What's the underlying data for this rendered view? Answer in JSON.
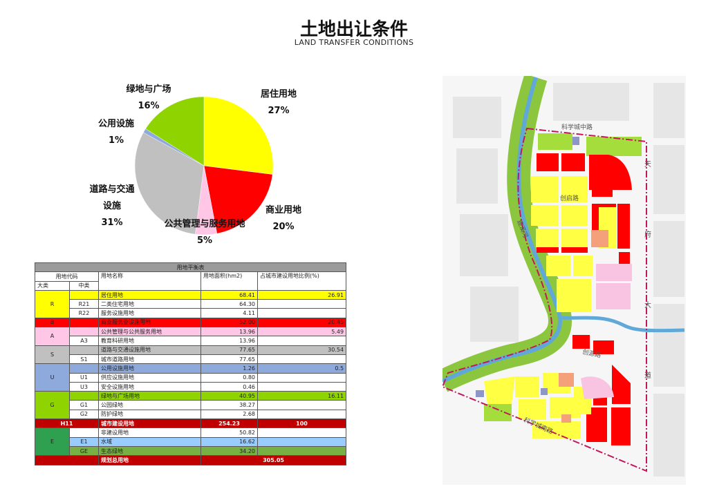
{
  "header": {
    "title": "土地出让条件",
    "subtitle": "LAND TRANSFER CONDITIONS"
  },
  "chart_data": {
    "type": "pie",
    "categories": [
      "居住用地",
      "商业用地",
      "公共管理与服务用地",
      "道路与交通设施",
      "公用设施",
      "绿地与广场"
    ],
    "values": [
      27,
      20,
      5,
      31,
      1,
      16
    ],
    "value_labels": [
      "27%",
      "20%",
      "5%",
      "31%",
      "1%",
      "16%"
    ],
    "colors": [
      "#ffff00",
      "#ff0000",
      "#ffc6e6",
      "#c0c0c0",
      "#8ea9db",
      "#8fd400"
    ]
  },
  "table": {
    "title": "用地平衡表",
    "headers": {
      "code": "用地代码",
      "name": "用地名称",
      "area": "用地面积(hm2)",
      "ratio": "占城市建设用地比例(%)",
      "major": "大类",
      "minor": "中类"
    },
    "sections": [
      {
        "code": "R",
        "color": "#ffff00",
        "rows": [
          {
            "name": "居住用地",
            "area": "68.41",
            "ratio": "26.91",
            "color": "#ffff00"
          },
          {
            "sub": "R21",
            "name": "二类住宅用地",
            "area": "64.30"
          },
          {
            "sub": "R22",
            "name": "服务设施用地",
            "area": "4.11"
          }
        ]
      },
      {
        "code": "B",
        "color": "#ff0000",
        "rows": [
          {
            "name": "商业服务业设施用地",
            "area": "52.00",
            "ratio": "20.45",
            "color": "#ff0000"
          }
        ]
      },
      {
        "code": "A",
        "color": "#ffc6e6",
        "rows": [
          {
            "name": "公共管理与公共服务用地",
            "area": "13.96",
            "ratio": "5.49",
            "color": "#ffc6e6"
          },
          {
            "sub": "A3",
            "name": "教育科研用地",
            "area": "13.96"
          }
        ]
      },
      {
        "code": "S",
        "color": "#c0c0c0",
        "rows": [
          {
            "name": "道路与交通设施用地",
            "area": "77.65",
            "ratio": "30.54",
            "color": "#c0c0c0"
          },
          {
            "sub": "S1",
            "name": "城市道路用地",
            "area": "77.65"
          }
        ]
      },
      {
        "code": "U",
        "color": "#8ea9db",
        "rows": [
          {
            "name": "公用设施用地",
            "area": "1.26",
            "ratio": "0.5",
            "color": "#8ea9db"
          },
          {
            "sub": "U1",
            "name": "供应设施用地",
            "area": "0.80"
          },
          {
            "sub": "U3",
            "name": "安全设施用地",
            "area": "0.46"
          }
        ]
      },
      {
        "code": "G",
        "color": "#8fd400",
        "rows": [
          {
            "name": "绿地与广场用地",
            "area": "40.95",
            "ratio": "16.11",
            "color": "#8fd400"
          },
          {
            "sub": "G1",
            "name": "公园绿地",
            "area": "38.27"
          },
          {
            "sub": "G2",
            "name": "防护绿地",
            "area": "2.68"
          }
        ]
      },
      {
        "code": "H11",
        "name": "城市建设用地",
        "area": "254.23",
        "ratio": "100",
        "color": "#c00000"
      },
      {
        "code": "E",
        "color": "#2ea04f",
        "rows": [
          {
            "name": "非建设用地",
            "area": "50.82"
          },
          {
            "sub": "E1",
            "name": "水域",
            "area": "16.62",
            "color": "#99ccff"
          },
          {
            "sub": "GE",
            "name": "生态绿地",
            "area": "34.20",
            "color": "#77b043"
          }
        ]
      },
      {
        "name": "规划总用地",
        "area": "305.05",
        "color": "#c00000"
      }
    ]
  },
  "map": {
    "labels": [
      "科学城中路",
      "创启路",
      "鹿溪河",
      "创源路",
      "科学城南路",
      "天府大道"
    ]
  }
}
